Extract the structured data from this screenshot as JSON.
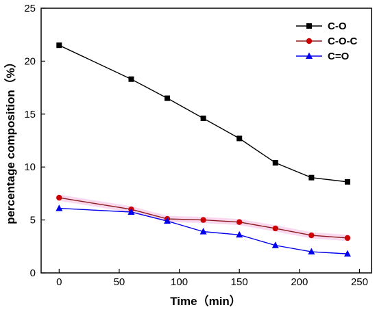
{
  "chart_data": {
    "type": "line",
    "xlabel": "Time（min）",
    "ylabel": "percentage composition（%）",
    "xlim": [
      -15,
      260
    ],
    "ylim": [
      0,
      25
    ],
    "xticks": [
      0,
      50,
      100,
      150,
      200,
      250
    ],
    "yticks": [
      0,
      5,
      10,
      15,
      20,
      25
    ],
    "grid": false,
    "legend_position": "top-right",
    "series": [
      {
        "name": "C-O",
        "marker": "square",
        "color": "#000000",
        "x": [
          0,
          60,
          90,
          120,
          150,
          180,
          210,
          240
        ],
        "y": [
          21.5,
          18.3,
          16.5,
          14.6,
          12.7,
          10.4,
          9.0,
          8.6
        ]
      },
      {
        "name": "C-O-C",
        "marker": "circle",
        "color": "#cc0000",
        "line_color": "#8b1a1a",
        "x": [
          0,
          60,
          90,
          120,
          150,
          180,
          210,
          240
        ],
        "y": [
          7.1,
          6.0,
          5.1,
          5.0,
          4.8,
          4.2,
          3.55,
          3.3
        ]
      },
      {
        "name": "C=O",
        "marker": "triangle",
        "color": "#0000ee",
        "x": [
          0,
          60,
          90,
          120,
          150,
          180,
          210,
          240
        ],
        "y": [
          6.1,
          5.75,
          4.9,
          3.9,
          3.6,
          2.6,
          2.0,
          1.8
        ]
      }
    ]
  }
}
